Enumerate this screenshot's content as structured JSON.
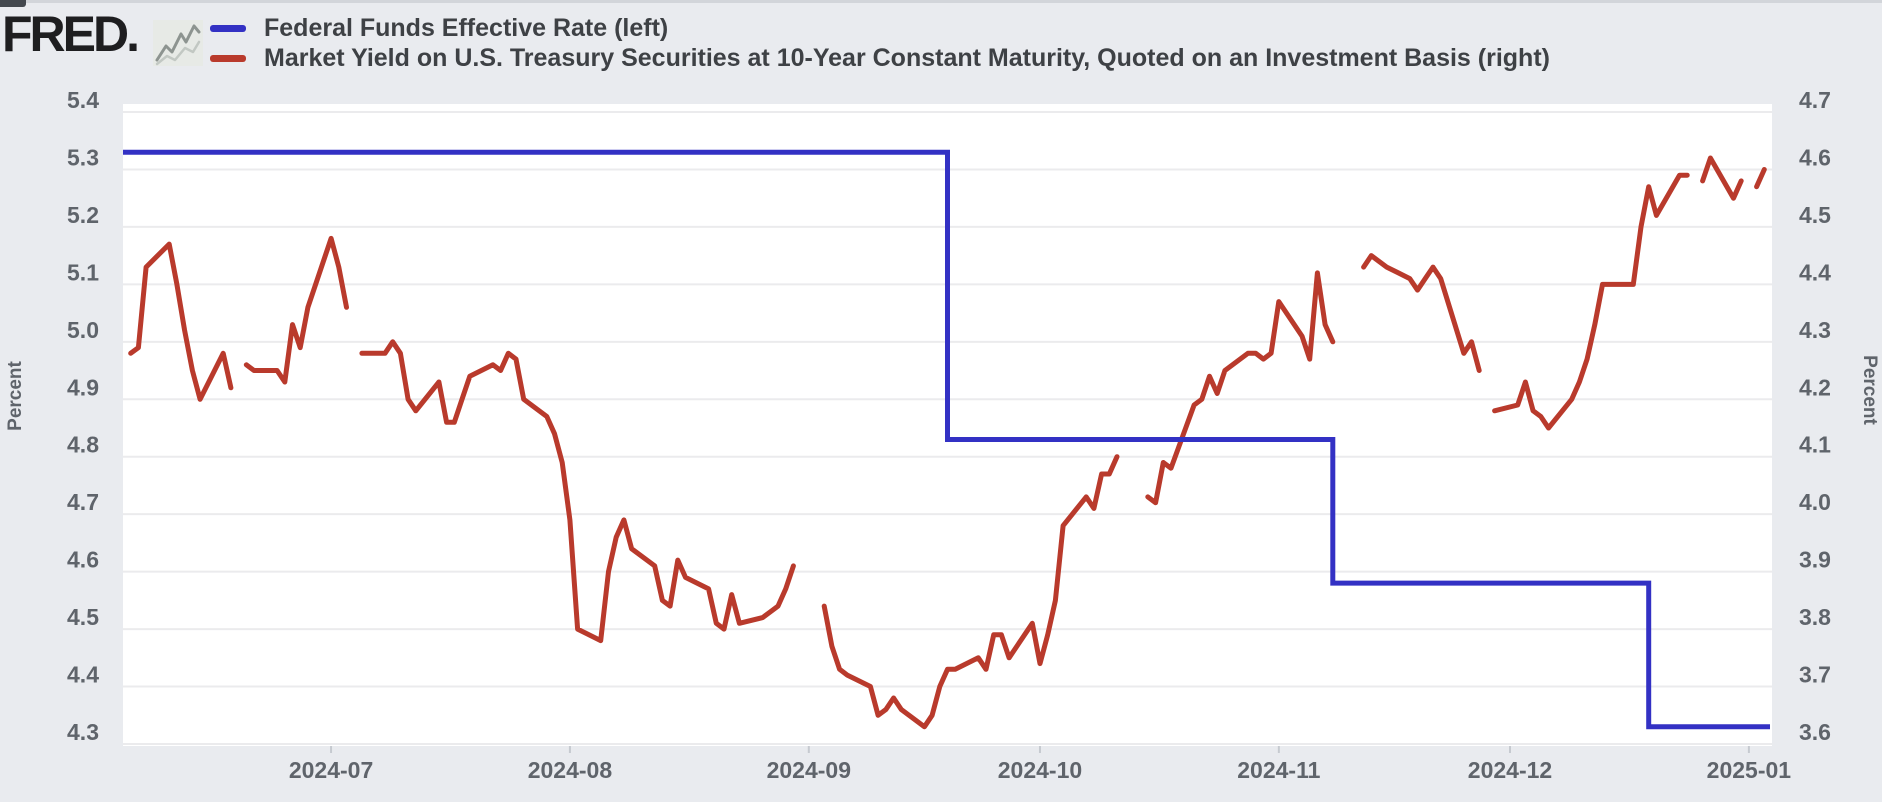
{
  "brand": {
    "logo_text": "FRED.",
    "icon": "sparkline-icon"
  },
  "legend": [
    {
      "swatch_color": "#3331c4",
      "label": "Federal Funds Effective Rate (left)"
    },
    {
      "swatch_color": "#b93a2c",
      "label": "Market Yield on U.S. Treasury Securities at 10-Year Constant Maturity, Quoted on an Investment Basis (right)"
    }
  ],
  "chart_data": {
    "type": "line",
    "title": "",
    "background": "#ffffff",
    "outer_background": "#e9ebef",
    "grid": true,
    "gridline_color": "#ebebed",
    "axis_text_color": "#5f646b",
    "x_axis": {
      "domain": [
        "2024-06-04",
        "2025-01-04"
      ],
      "ticks": [
        {
          "label": "2024-07",
          "date": "2024-07-01"
        },
        {
          "label": "2024-08",
          "date": "2024-08-01"
        },
        {
          "label": "2024-09",
          "date": "2024-09-01"
        },
        {
          "label": "2024-10",
          "date": "2024-10-01"
        },
        {
          "label": "2024-11",
          "date": "2024-11-01"
        },
        {
          "label": "2024-12",
          "date": "2024-12-01"
        },
        {
          "label": "2025-01",
          "date": "2025-01-01"
        }
      ]
    },
    "y_axis_left": {
      "label": "Percent",
      "range": [
        4.3,
        5.4
      ],
      "ticks": [
        "5.4",
        "5.3",
        "5.2",
        "5.1",
        "5.0",
        "4.9",
        "4.8",
        "4.7",
        "4.6",
        "4.5",
        "4.4",
        "4.3"
      ]
    },
    "y_axis_right": {
      "label": "Percent",
      "range": [
        3.6,
        4.7
      ],
      "ticks": [
        "4.7",
        "4.6",
        "4.5",
        "4.4",
        "4.3",
        "4.2",
        "4.1",
        "4.0",
        "3.9",
        "3.8",
        "3.7",
        "3.6"
      ]
    },
    "series": [
      {
        "name": "Federal Funds Effective Rate",
        "axis": "left",
        "color": "#3331c4",
        "style": "step",
        "segments": [
          {
            "start": "2024-06-04",
            "end": "2024-09-18",
            "value": 5.33
          },
          {
            "start": "2024-09-19",
            "end": "2024-11-07",
            "value": 4.83
          },
          {
            "start": "2024-11-08",
            "end": "2024-12-18",
            "value": 4.58
          },
          {
            "start": "2024-12-19",
            "end": "2025-01-03",
            "value": 4.33
          }
        ]
      },
      {
        "name": "Market Yield on U.S. Treasury Securities at 10-Year Constant Maturity, Quoted on an Investment Basis",
        "axis": "right",
        "color": "#b93a2c",
        "style": "line",
        "points": [
          [
            "2024-06-05",
            4.28
          ],
          [
            "2024-06-06",
            4.29
          ],
          [
            "2024-06-07",
            4.43
          ],
          [
            "2024-06-10",
            4.47
          ],
          [
            "2024-06-11",
            4.4
          ],
          [
            "2024-06-12",
            4.32
          ],
          [
            "2024-06-13",
            4.25
          ],
          [
            "2024-06-14",
            4.2
          ],
          [
            "2024-06-17",
            4.28
          ],
          [
            "2024-06-18",
            4.22
          ],
          [
            "2024-06-19",
            null
          ],
          [
            "2024-06-20",
            4.26
          ],
          [
            "2024-06-21",
            4.25
          ],
          [
            "2024-06-24",
            4.25
          ],
          [
            "2024-06-25",
            4.23
          ],
          [
            "2024-06-26",
            4.33
          ],
          [
            "2024-06-27",
            4.29
          ],
          [
            "2024-06-28",
            4.36
          ],
          [
            "2024-07-01",
            4.48
          ],
          [
            "2024-07-02",
            4.43
          ],
          [
            "2024-07-03",
            4.36
          ],
          [
            "2024-07-04",
            null
          ],
          [
            "2024-07-05",
            4.28
          ],
          [
            "2024-07-08",
            4.28
          ],
          [
            "2024-07-09",
            4.3
          ],
          [
            "2024-07-10",
            4.28
          ],
          [
            "2024-07-11",
            4.2
          ],
          [
            "2024-07-12",
            4.18
          ],
          [
            "2024-07-15",
            4.23
          ],
          [
            "2024-07-16",
            4.16
          ],
          [
            "2024-07-17",
            4.16
          ],
          [
            "2024-07-18",
            4.2
          ],
          [
            "2024-07-19",
            4.24
          ],
          [
            "2024-07-22",
            4.26
          ],
          [
            "2024-07-23",
            4.25
          ],
          [
            "2024-07-24",
            4.28
          ],
          [
            "2024-07-25",
            4.27
          ],
          [
            "2024-07-26",
            4.2
          ],
          [
            "2024-07-29",
            4.17
          ],
          [
            "2024-07-30",
            4.14
          ],
          [
            "2024-07-31",
            4.09
          ],
          [
            "2024-08-01",
            3.99
          ],
          [
            "2024-08-02",
            3.8
          ],
          [
            "2024-08-05",
            3.78
          ],
          [
            "2024-08-06",
            3.9
          ],
          [
            "2024-08-07",
            3.96
          ],
          [
            "2024-08-08",
            3.99
          ],
          [
            "2024-08-09",
            3.94
          ],
          [
            "2024-08-12",
            3.91
          ],
          [
            "2024-08-13",
            3.85
          ],
          [
            "2024-08-14",
            3.84
          ],
          [
            "2024-08-15",
            3.92
          ],
          [
            "2024-08-16",
            3.89
          ],
          [
            "2024-08-19",
            3.87
          ],
          [
            "2024-08-20",
            3.81
          ],
          [
            "2024-08-21",
            3.8
          ],
          [
            "2024-08-22",
            3.86
          ],
          [
            "2024-08-23",
            3.81
          ],
          [
            "2024-08-26",
            3.82
          ],
          [
            "2024-08-27",
            3.83
          ],
          [
            "2024-08-28",
            3.84
          ],
          [
            "2024-08-29",
            3.87
          ],
          [
            "2024-08-30",
            3.91
          ],
          [
            "2024-09-02",
            null
          ],
          [
            "2024-09-03",
            3.84
          ],
          [
            "2024-09-04",
            3.77
          ],
          [
            "2024-09-05",
            3.73
          ],
          [
            "2024-09-06",
            3.72
          ],
          [
            "2024-09-09",
            3.7
          ],
          [
            "2024-09-10",
            3.65
          ],
          [
            "2024-09-11",
            3.66
          ],
          [
            "2024-09-12",
            3.68
          ],
          [
            "2024-09-13",
            3.66
          ],
          [
            "2024-09-16",
            3.63
          ],
          [
            "2024-09-17",
            3.65
          ],
          [
            "2024-09-18",
            3.7
          ],
          [
            "2024-09-19",
            3.73
          ],
          [
            "2024-09-20",
            3.73
          ],
          [
            "2024-09-23",
            3.75
          ],
          [
            "2024-09-24",
            3.73
          ],
          [
            "2024-09-25",
            3.79
          ],
          [
            "2024-09-26",
            3.79
          ],
          [
            "2024-09-27",
            3.75
          ],
          [
            "2024-09-30",
            3.81
          ],
          [
            "2024-10-01",
            3.74
          ],
          [
            "2024-10-02",
            3.79
          ],
          [
            "2024-10-03",
            3.85
          ],
          [
            "2024-10-04",
            3.98
          ],
          [
            "2024-10-07",
            4.03
          ],
          [
            "2024-10-08",
            4.01
          ],
          [
            "2024-10-09",
            4.07
          ],
          [
            "2024-10-10",
            4.07
          ],
          [
            "2024-10-11",
            4.1
          ],
          [
            "2024-10-14",
            null
          ],
          [
            "2024-10-15",
            4.03
          ],
          [
            "2024-10-16",
            4.02
          ],
          [
            "2024-10-17",
            4.09
          ],
          [
            "2024-10-18",
            4.08
          ],
          [
            "2024-10-21",
            4.19
          ],
          [
            "2024-10-22",
            4.2
          ],
          [
            "2024-10-23",
            4.24
          ],
          [
            "2024-10-24",
            4.21
          ],
          [
            "2024-10-25",
            4.25
          ],
          [
            "2024-10-28",
            4.28
          ],
          [
            "2024-10-29",
            4.28
          ],
          [
            "2024-10-30",
            4.27
          ],
          [
            "2024-10-31",
            4.28
          ],
          [
            "2024-11-01",
            4.37
          ],
          [
            "2024-11-04",
            4.31
          ],
          [
            "2024-11-05",
            4.27
          ],
          [
            "2024-11-06",
            4.42
          ],
          [
            "2024-11-07",
            4.33
          ],
          [
            "2024-11-08",
            4.3
          ],
          [
            "2024-11-11",
            null
          ],
          [
            "2024-11-12",
            4.43
          ],
          [
            "2024-11-13",
            4.45
          ],
          [
            "2024-11-14",
            4.44
          ],
          [
            "2024-11-15",
            4.43
          ],
          [
            "2024-11-18",
            4.41
          ],
          [
            "2024-11-19",
            4.39
          ],
          [
            "2024-11-20",
            4.41
          ],
          [
            "2024-11-21",
            4.43
          ],
          [
            "2024-11-22",
            4.41
          ],
          [
            "2024-11-25",
            4.28
          ],
          [
            "2024-11-26",
            4.3
          ],
          [
            "2024-11-27",
            4.25
          ],
          [
            "2024-11-28",
            null
          ],
          [
            "2024-11-29",
            4.18
          ],
          [
            "2024-12-02",
            4.19
          ],
          [
            "2024-12-03",
            4.23
          ],
          [
            "2024-12-04",
            4.18
          ],
          [
            "2024-12-05",
            4.17
          ],
          [
            "2024-12-06",
            4.15
          ],
          [
            "2024-12-09",
            4.2
          ],
          [
            "2024-12-10",
            4.23
          ],
          [
            "2024-12-11",
            4.27
          ],
          [
            "2024-12-12",
            4.33
          ],
          [
            "2024-12-13",
            4.4
          ],
          [
            "2024-12-16",
            4.4
          ],
          [
            "2024-12-17",
            4.4
          ],
          [
            "2024-12-18",
            4.5
          ],
          [
            "2024-12-19",
            4.57
          ],
          [
            "2024-12-20",
            4.52
          ],
          [
            "2024-12-23",
            4.59
          ],
          [
            "2024-12-24",
            4.59
          ],
          [
            "2024-12-25",
            null
          ],
          [
            "2024-12-26",
            4.58
          ],
          [
            "2024-12-27",
            4.62
          ],
          [
            "2024-12-30",
            4.55
          ],
          [
            "2024-12-31",
            4.58
          ],
          [
            "2025-01-01",
            null
          ],
          [
            "2025-01-02",
            4.57
          ],
          [
            "2025-01-03",
            4.6
          ]
        ]
      }
    ]
  }
}
